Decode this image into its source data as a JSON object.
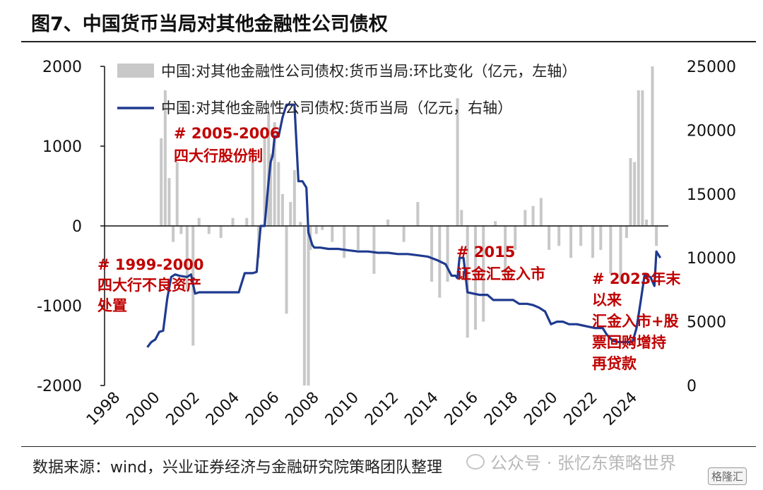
{
  "figure": {
    "title": "图7、中国货币当局对其他金融性公司债权",
    "source": "数据来源：wind，兴业证券经济与金融研究院策略团队整理",
    "watermark": "公众号 · 张忆东策略世界",
    "badge": "格隆汇"
  },
  "chart_data": {
    "type": "bar+line",
    "colors": {
      "bar": "#c8c8c8",
      "line": "#1f3a8f",
      "annotation": "#c00000",
      "axis": "#111111"
    },
    "x_ticks": [
      "1998",
      "2000",
      "2002",
      "2004",
      "2006",
      "2008",
      "2010",
      "2012",
      "2014",
      "2016",
      "2018",
      "2020",
      "2022",
      "2024"
    ],
    "y_left": {
      "range": [
        -2000,
        2000
      ],
      "ticks": [
        "2000",
        "1000",
        "0",
        "-1000",
        "-2000"
      ]
    },
    "y_right": {
      "range": [
        0,
        25000
      ],
      "ticks": [
        "25000",
        "20000",
        "15000",
        "10000",
        "5000",
        "0"
      ]
    },
    "legend": {
      "position": "top",
      "bar_label": "中国:对其他金融性公司债权:货币当局:环比变化（亿元，左轴）",
      "line_label": "中国:对其他金融性公司债权:货币当局（亿元，右轴）"
    },
    "annotations": [
      {
        "lines": [
          "# 1999-2000",
          "四大行不良资产",
          "处置"
        ],
        "anchor": "left"
      },
      {
        "lines": [
          "# 2005-2006",
          "四大行股份制"
        ],
        "anchor": "top-left"
      },
      {
        "lines": [
          "# 2015",
          "证金汇金入市"
        ],
        "anchor": "middle"
      },
      {
        "lines": [
          "# 2023年末",
          "以来",
          "汇金入市+股",
          "票回购增持",
          "再贷款"
        ],
        "anchor": "right"
      }
    ],
    "series": [
      {
        "name": "中国:对其他金融性公司债权:货币当局（亿元，右轴）",
        "kind": "line",
        "x": [
          1999.9,
          2000.1,
          2000.3,
          2000.5,
          2000.7,
          2000.9,
          2001.1,
          2001.3,
          2001.5,
          2001.7,
          2001.9,
          2002.1,
          2002.3,
          2002.5,
          2002.8,
          2003.2,
          2003.6,
          2004.0,
          2004.5,
          2004.8,
          2005.0,
          2005.2,
          2005.4,
          2005.5,
          2005.6,
          2005.8,
          2006.0,
          2006.1,
          2006.2,
          2006.3,
          2006.5,
          2006.7,
          2006.9,
          2007.1,
          2007.3,
          2007.5,
          2007.7,
          2007.9,
          2008.0,
          2008.1,
          2008.2,
          2008.3,
          2008.6,
          2009.0,
          2009.5,
          2010.0,
          2010.5,
          2011.0,
          2011.5,
          2012.0,
          2012.5,
          2013.0,
          2013.5,
          2014.0,
          2014.5,
          2014.9,
          2015.2,
          2015.4,
          2015.5,
          2015.6,
          2015.7,
          2015.8,
          2016.0,
          2016.3,
          2016.6,
          2017.0,
          2017.3,
          2017.6,
          2018.0,
          2018.3,
          2018.6,
          2019.0,
          2019.3,
          2019.6,
          2019.9,
          2020.2,
          2020.5,
          2020.8,
          2021.1,
          2021.5,
          2021.8,
          2022.1,
          2022.4,
          2022.6,
          2022.8,
          2023.0,
          2023.3,
          2023.6,
          2023.9,
          2024.1,
          2024.3,
          2024.5,
          2024.7,
          2024.9,
          2025.2,
          2025.4,
          2025.5,
          2025.7
        ],
        "values": [
          3000,
          3400,
          3600,
          4200,
          4300,
          6800,
          8500,
          8700,
          8600,
          8550,
          8500,
          8700,
          7200,
          7300,
          7300,
          7300,
          7300,
          7300,
          7300,
          8800,
          8800,
          8800,
          8900,
          10800,
          12500,
          12500,
          16000,
          17500,
          18000,
          19500,
          19500,
          21000,
          22000,
          22000,
          22000,
          16000,
          16000,
          15500,
          12000,
          11500,
          11000,
          10800,
          10800,
          10700,
          10700,
          10600,
          10500,
          10500,
          10400,
          10400,
          10300,
          10300,
          10200,
          10100,
          9800,
          9500,
          8600,
          8600,
          8400,
          10000,
          10000,
          10000,
          7300,
          7200,
          7100,
          7100,
          6700,
          6700,
          6700,
          6700,
          6400,
          6400,
          6300,
          6100,
          5800,
          4800,
          5000,
          5000,
          4800,
          4800,
          4700,
          4600,
          4500,
          4500,
          4500,
          4000,
          3500,
          3400,
          3400,
          3400,
          3400,
          4500,
          6500,
          8600,
          8500,
          7800,
          10500,
          10000
        ]
      },
      {
        "name": "中国:对其他金融性公司债权:货币当局:环比变化（亿元，左轴）",
        "kind": "bar",
        "x": [
          2000.6,
          2000.8,
          2001.0,
          2001.2,
          2001.4,
          2001.6,
          2001.9,
          2002.2,
          2002.5,
          2003.0,
          2003.6,
          2004.2,
          2004.9,
          2005.2,
          2005.5,
          2005.8,
          2006.0,
          2006.1,
          2006.3,
          2006.5,
          2006.7,
          2006.9,
          2007.1,
          2007.3,
          2007.6,
          2007.8,
          2008.0,
          2008.1,
          2008.4,
          2008.7,
          2009.2,
          2009.8,
          2010.5,
          2011.3,
          2012.0,
          2012.8,
          2013.5,
          2014.2,
          2014.6,
          2015.0,
          2015.5,
          2015.7,
          2016.0,
          2016.4,
          2016.8,
          2017.4,
          2017.9,
          2018.4,
          2018.9,
          2019.3,
          2019.7,
          2020.1,
          2020.6,
          2021.2,
          2021.7,
          2022.3,
          2022.7,
          2023.2,
          2023.7,
          2024.0,
          2024.2,
          2024.4,
          2024.6,
          2024.8,
          2025.0,
          2025.3,
          2025.5
        ],
        "values": [
          1100,
          1700,
          600,
          -200,
          800,
          -100,
          -800,
          -1500,
          100,
          -100,
          -150,
          100,
          100,
          800,
          -400,
          1100,
          1400,
          900,
          1300,
          800,
          400,
          -1100,
          300,
          700,
          50,
          -2000,
          -2000,
          -300,
          -100,
          -50,
          -200,
          -400,
          -300,
          -600,
          80,
          -200,
          300,
          -700,
          -900,
          -700,
          1600,
          200,
          -1400,
          -1300,
          -1200,
          60,
          -600,
          -300,
          200,
          250,
          350,
          -300,
          -250,
          -400,
          -250,
          -400,
          -300,
          -600,
          -700,
          -150,
          850,
          800,
          1700,
          1700,
          80,
          2000,
          -250
        ]
      }
    ]
  }
}
